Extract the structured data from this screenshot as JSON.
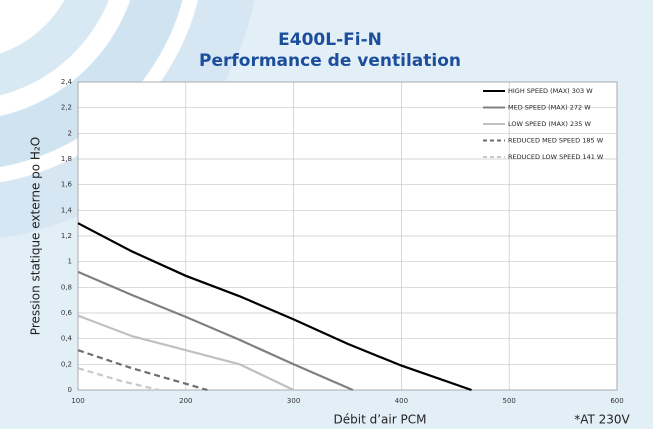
{
  "chart_data": {
    "type": "line",
    "title": "E400L-Fi-N",
    "subtitle": "Performance de ventilation",
    "xlabel": "Débit d’air PCM",
    "ylabel": "Pression statique externe po H₂O",
    "note": "*AT 230V",
    "xlim": [
      100,
      600
    ],
    "xticks": [
      100,
      200,
      300,
      400,
      500,
      600
    ],
    "ylim": [
      0,
      2.4
    ],
    "yticks": [
      0,
      {
        "value": 0.2,
        "label": "0,2"
      },
      {
        "value": 0.4,
        "label": "0,4"
      },
      {
        "value": 0.6,
        "label": "0,6"
      },
      {
        "value": 0.8,
        "label": "0,8"
      },
      1,
      {
        "value": 1.2,
        "label": "1,2"
      },
      {
        "value": 1.4,
        "label": "1,4"
      },
      {
        "value": 1.6,
        "label": "1,6"
      },
      {
        "value": 1.8,
        "label": "1,8"
      },
      2,
      {
        "value": 2.2,
        "label": "2,2"
      },
      {
        "value": 2.4,
        "label": "2,4"
      }
    ],
    "grid": true,
    "legend": "top-right",
    "series": [
      {
        "name": "HIGH SPEED (MAX) 303 W",
        "color": "#000000",
        "dashed": false,
        "x": [
          100,
          150,
          200,
          250,
          300,
          350,
          400,
          465
        ],
        "values": [
          1.3,
          1.08,
          0.89,
          0.73,
          0.55,
          0.36,
          0.19,
          0
        ]
      },
      {
        "name": "MED SPEED (MAX) 272 W",
        "color": "#808080",
        "dashed": false,
        "x": [
          100,
          150,
          200,
          250,
          300,
          355
        ],
        "values": [
          0.92,
          0.74,
          0.57,
          0.39,
          0.2,
          0
        ]
      },
      {
        "name": "LOW SPEED (MAX) 235 W",
        "color": "#c0c0c0",
        "dashed": false,
        "x": [
          100,
          150,
          200,
          250,
          300
        ],
        "values": [
          0.58,
          0.42,
          0.31,
          0.2,
          0
        ]
      },
      {
        "name": "REDUCED MED SPEED 185 W",
        "color": "#6e6e6e",
        "dashed": true,
        "x": [
          100,
          150,
          220
        ],
        "values": [
          0.31,
          0.17,
          0
        ]
      },
      {
        "name": "REDUCED LOW SPEED 141 W",
        "color": "#c8c8c8",
        "dashed": true,
        "x": [
          100,
          140,
          175
        ],
        "values": [
          0.17,
          0.07,
          0
        ]
      }
    ]
  }
}
